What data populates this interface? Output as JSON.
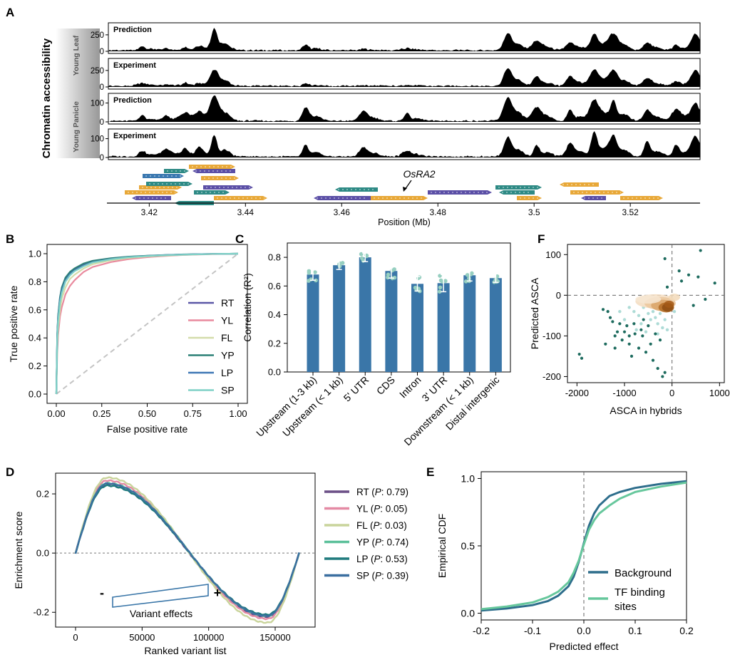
{
  "panel_letters": [
    "A",
    "B",
    "C",
    "D",
    "E",
    "F"
  ],
  "panel_a": {
    "ylabel_main": "Chromatin accessibility",
    "group_labels": [
      "Young Leaf",
      "Young Panicle"
    ],
    "tracks": [
      {
        "label": "Prediction",
        "ticks": [
          "250",
          "0"
        ],
        "color": "#2e8a85"
      },
      {
        "label": "Experiment",
        "ticks": [
          "250",
          "0"
        ],
        "color": "#5b4fa6"
      },
      {
        "label": "Prediction",
        "ticks": [
          "100",
          "0"
        ],
        "color": "#2e8a85"
      },
      {
        "label": "Experiment",
        "ticks": [
          "100",
          "0"
        ],
        "color": "#5b4fa6"
      }
    ],
    "gene_label": "OsRA2",
    "xticks": [
      "3.42",
      "3.44",
      "3.46",
      "3.48",
      "3.5",
      "3.52"
    ],
    "xlabel": "Position (Mb)"
  },
  "chart_data": [
    {
      "panel": "A",
      "type": "area",
      "x_range_mb": [
        3.4115,
        3.5345
      ],
      "xticks": [
        3.42,
        3.44,
        3.46,
        3.48,
        3.5,
        3.52
      ],
      "peaks_mb": [
        3.4185,
        3.4235,
        3.4275,
        3.4305,
        3.4335,
        3.4525,
        3.4645,
        3.4735,
        3.4945,
        3.5005,
        3.5075,
        3.5125,
        3.5165,
        3.5235,
        3.5295,
        3.5335
      ],
      "series": [
        {
          "name": "Prediction",
          "group": "Young Leaf",
          "ylim": [
            0,
            400
          ],
          "peak_values": [
            60,
            30,
            40,
            60,
            310,
            80,
            20,
            30,
            250,
            140,
            110,
            240,
            230,
            120,
            80,
            230
          ]
        },
        {
          "name": "Experiment",
          "group": "Young Leaf",
          "ylim": [
            0,
            400
          ],
          "peak_values": [
            40,
            20,
            50,
            30,
            230,
            40,
            10,
            20,
            260,
            140,
            140,
            240,
            220,
            110,
            70,
            220
          ]
        },
        {
          "name": "Prediction",
          "group": "Young Panicle",
          "ylim": [
            0,
            140
          ],
          "peak_values": [
            30,
            30,
            40,
            40,
            120,
            70,
            50,
            40,
            120,
            70,
            60,
            110,
            100,
            60,
            60,
            90
          ]
        },
        {
          "name": "Experiment",
          "group": "Young Panicle",
          "ylim": [
            0,
            140
          ],
          "peak_values": [
            30,
            40,
            40,
            40,
            100,
            60,
            50,
            30,
            100,
            60,
            70,
            130,
            100,
            80,
            60,
            100
          ]
        }
      ]
    },
    {
      "panel": "B",
      "type": "line",
      "xlabel": "False positive rate",
      "ylabel": "True positive rate",
      "xlim": [
        0,
        1
      ],
      "ylim": [
        0,
        1
      ],
      "xticks": [
        "0.00",
        "0.25",
        "0.50",
        "0.75",
        "1.00"
      ],
      "yticks": [
        "0.0",
        "0.2",
        "0.4",
        "0.6",
        "0.8",
        "1.0"
      ],
      "x": [
        0,
        0.005,
        0.01,
        0.02,
        0.03,
        0.05,
        0.075,
        0.1,
        0.15,
        0.2,
        0.3,
        0.4,
        0.5,
        0.6,
        0.7,
        0.8,
        0.9,
        1.0
      ],
      "series": [
        {
          "name": "RT",
          "color": "#5b57a6",
          "values": [
            0,
            0.42,
            0.55,
            0.68,
            0.75,
            0.82,
            0.86,
            0.885,
            0.92,
            0.945,
            0.965,
            0.978,
            0.985,
            0.99,
            0.994,
            0.997,
            0.999,
            1.0
          ]
        },
        {
          "name": "YL",
          "color": "#e98a9e",
          "values": [
            0,
            0.3,
            0.42,
            0.55,
            0.62,
            0.71,
            0.77,
            0.81,
            0.87,
            0.905,
            0.94,
            0.962,
            0.975,
            0.984,
            0.991,
            0.995,
            0.998,
            1.0
          ]
        },
        {
          "name": "FL",
          "color": "#d4dcaa",
          "values": [
            0,
            0.35,
            0.47,
            0.6,
            0.68,
            0.76,
            0.82,
            0.85,
            0.895,
            0.925,
            0.953,
            0.97,
            0.98,
            0.987,
            0.992,
            0.996,
            0.999,
            1.0
          ]
        },
        {
          "name": "YP",
          "color": "#2c8076",
          "values": [
            0,
            0.43,
            0.56,
            0.69,
            0.76,
            0.83,
            0.87,
            0.895,
            0.93,
            0.95,
            0.968,
            0.979,
            0.986,
            0.991,
            0.995,
            0.997,
            0.999,
            1.0
          ]
        },
        {
          "name": "LP",
          "color": "#3f78b5",
          "values": [
            0,
            0.41,
            0.54,
            0.67,
            0.74,
            0.81,
            0.855,
            0.88,
            0.915,
            0.94,
            0.962,
            0.976,
            0.984,
            0.99,
            0.994,
            0.997,
            0.999,
            1.0
          ]
        },
        {
          "name": "SP",
          "color": "#7fd1c6",
          "values": [
            0,
            0.39,
            0.52,
            0.65,
            0.72,
            0.8,
            0.845,
            0.875,
            0.91,
            0.937,
            0.96,
            0.975,
            0.983,
            0.989,
            0.993,
            0.996,
            0.999,
            1.0
          ]
        }
      ],
      "diagonal_color": "#c4c4c4"
    },
    {
      "panel": "C",
      "type": "bar",
      "ylabel": "Correlation (R²)",
      "ylim": [
        0,
        0.9
      ],
      "yticks": [
        "0.0",
        "0.2",
        "0.4",
        "0.6",
        "0.8"
      ],
      "categories": [
        "Upstream (1-3 kb)",
        "Upstream (< 1 kb)",
        "5' UTR",
        "CDS",
        "Intron",
        "3' UTR",
        "Downstream (< 1 kb)",
        "Distal intergenic"
      ],
      "values": [
        0.68,
        0.745,
        0.8,
        0.705,
        0.615,
        0.62,
        0.675,
        0.655
      ],
      "errors": [
        0.04,
        0.03,
        0.03,
        0.05,
        0.05,
        0.06,
        0.04,
        0.03
      ],
      "color": "#3a76a8",
      "points_color": "#96cfc0"
    },
    {
      "panel": "D",
      "type": "line",
      "xlabel": "Ranked variant list",
      "ylabel": "Enrichment score",
      "xlim": [
        -15000,
        180000
      ],
      "ylim": [
        -0.25,
        0.27
      ],
      "xticks": [
        "0",
        "50000",
        "100000",
        "150000"
      ],
      "yticks": [
        "0.2",
        "0.0",
        "-0.2"
      ],
      "annotation": "Variant effects",
      "minus_label": "-",
      "plus_label": "+",
      "series": [
        {
          "name": "RT",
          "p": "0.79",
          "color": "#6b4f86",
          "peak": 0.232,
          "trough": -0.215
        },
        {
          "name": "YL",
          "p": "0.05",
          "color": "#e48aa4",
          "peak": 0.245,
          "trough": -0.222
        },
        {
          "name": "FL",
          "p": "0.03",
          "color": "#c9d49b",
          "peak": 0.255,
          "trough": -0.235
        },
        {
          "name": "YP",
          "p": "0.74",
          "color": "#5cc09a",
          "peak": 0.236,
          "trough": -0.212
        },
        {
          "name": "LP",
          "p": "0.53",
          "color": "#1f7a7d",
          "peak": 0.228,
          "trough": -0.208
        },
        {
          "name": "SP",
          "p": "0.39",
          "color": "#3b6fa0",
          "peak": 0.235,
          "trough": -0.212
        }
      ],
      "legend_label_prefix": "P: "
    },
    {
      "panel": "E",
      "type": "line",
      "xlabel": "Predicted effect",
      "ylabel": "Empirical CDF",
      "xlim": [
        -0.2,
        0.2
      ],
      "ylim": [
        -0.05,
        1.05
      ],
      "xticks": [
        "-0.2",
        "-0.1",
        "0.0",
        "0.1",
        "0.2"
      ],
      "yticks": [
        "0.0",
        "0.5",
        "1.0"
      ],
      "x": [
        -0.2,
        -0.15,
        -0.1,
        -0.07,
        -0.05,
        -0.03,
        -0.02,
        -0.01,
        0,
        0.01,
        0.02,
        0.03,
        0.05,
        0.07,
        0.1,
        0.15,
        0.2
      ],
      "series": [
        {
          "name": "Background",
          "color": "#2e6e8c",
          "values": [
            0.02,
            0.035,
            0.06,
            0.09,
            0.13,
            0.2,
            0.27,
            0.38,
            0.52,
            0.65,
            0.74,
            0.8,
            0.87,
            0.9,
            0.93,
            0.96,
            0.98
          ]
        },
        {
          "name": "TF binding sites",
          "color": "#66c79c",
          "values": [
            0.03,
            0.05,
            0.08,
            0.12,
            0.16,
            0.23,
            0.3,
            0.39,
            0.51,
            0.62,
            0.69,
            0.74,
            0.8,
            0.85,
            0.9,
            0.94,
            0.97
          ]
        }
      ]
    },
    {
      "panel": "F",
      "type": "scatter",
      "xlabel": "ASCA in hybrids",
      "ylabel": "Predicted ASCA",
      "xlim": [
        -2200,
        1100
      ],
      "ylim": [
        -215,
        125
      ],
      "xticks": [
        "-2000",
        "-1000",
        "0",
        "1000"
      ],
      "yticks": [
        "100",
        "0",
        "-100",
        "-200"
      ],
      "dark_points": [
        [
          -1950,
          -145
        ],
        [
          -1900,
          -155
        ],
        [
          -1450,
          -35
        ],
        [
          -1350,
          -40
        ],
        [
          -1200,
          -100
        ],
        [
          -1250,
          -65
        ],
        [
          -1150,
          -90
        ],
        [
          -1050,
          -110
        ],
        [
          -950,
          -75
        ],
        [
          -900,
          -120
        ],
        [
          -850,
          -150
        ],
        [
          -780,
          -95
        ],
        [
          -700,
          -130
        ],
        [
          -650,
          -85
        ],
        [
          -620,
          -100
        ],
        [
          -550,
          -140
        ],
        [
          -450,
          -120
        ],
        [
          -400,
          -160
        ],
        [
          -300,
          -180
        ],
        [
          -200,
          -200
        ],
        [
          -150,
          -190
        ],
        [
          -1300,
          -55
        ],
        [
          -1000,
          -90
        ],
        [
          -800,
          -70
        ],
        [
          -600,
          -60
        ],
        [
          -500,
          -75
        ],
        [
          -350,
          -95
        ],
        [
          -250,
          -110
        ],
        [
          -1100,
          -70
        ],
        [
          -900,
          -100
        ],
        [
          -150,
          90
        ],
        [
          150,
          60
        ],
        [
          350,
          50
        ],
        [
          550,
          45
        ],
        [
          600,
          110
        ],
        [
          900,
          30
        ],
        [
          200,
          35
        ],
        [
          -100,
          20
        ],
        [
          450,
          -25
        ],
        [
          700,
          -10
        ],
        [
          -1400,
          -120
        ],
        [
          -1200,
          -130
        ]
      ],
      "light_points": [
        [
          -900,
          -30
        ],
        [
          -800,
          -40
        ],
        [
          -700,
          -50
        ],
        [
          -600,
          -30
        ],
        [
          -500,
          -45
        ],
        [
          -450,
          -60
        ],
        [
          -400,
          -40
        ],
        [
          -350,
          -55
        ],
        [
          -300,
          -70
        ],
        [
          -250,
          -45
        ],
        [
          -200,
          -80
        ],
        [
          -150,
          -60
        ],
        [
          -100,
          -85
        ],
        [
          -650,
          -70
        ],
        [
          -550,
          -90
        ],
        [
          -1000,
          -60
        ],
        [
          -1100,
          -40
        ],
        [
          -750,
          -85
        ],
        [
          50,
          -40
        ],
        [
          -300,
          -95
        ]
      ],
      "cloud_center": [
        -120,
        -30
      ]
    }
  ]
}
